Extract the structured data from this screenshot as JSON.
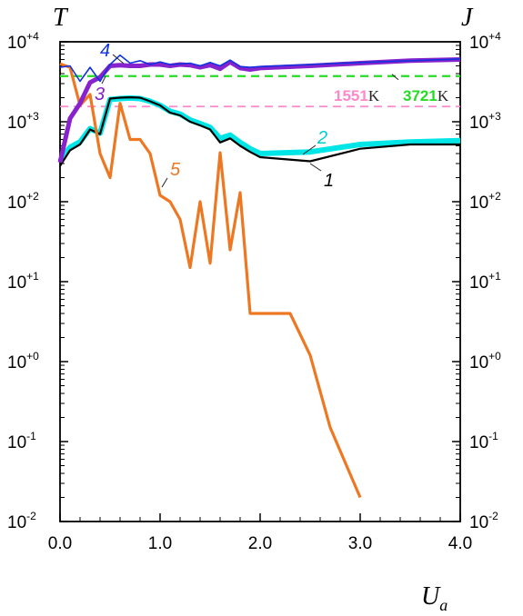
{
  "chart_data": {
    "type": "line",
    "ylabel_left": "T",
    "ylabel_right": "J",
    "xlabel": "U",
    "xlabel_sub": "a",
    "xlim": [
      0,
      4
    ],
    "ylim": [
      0.01,
      10000
    ],
    "yscale": "log",
    "x_ticks": [
      "0.0",
      "1.0",
      "2.0",
      "3.0",
      "4.0"
    ],
    "y_ticks": [
      {
        "base": "10",
        "exp": "-2",
        "value": 0.01
      },
      {
        "base": "10",
        "exp": "-1",
        "value": 0.1
      },
      {
        "base": "10",
        "exp": "+0",
        "value": 1
      },
      {
        "base": "10",
        "exp": "+1",
        "value": 10
      },
      {
        "base": "10",
        "exp": "+2",
        "value": 100
      },
      {
        "base": "10",
        "exp": "+3",
        "value": 1000
      },
      {
        "base": "10",
        "exp": "+4",
        "value": 10000
      }
    ],
    "grid": false,
    "reference_lines": [
      {
        "value": 3721,
        "label": "3721",
        "unit": "K",
        "color": "#22dd22"
      },
      {
        "value": 1551,
        "label": "1551",
        "unit": "K",
        "color": "#ff88cc"
      }
    ],
    "series": [
      {
        "label": "1",
        "color": "#000000",
        "label_color": "#000000",
        "x": [
          0,
          0.1,
          0.2,
          0.3,
          0.4,
          0.5,
          0.6,
          0.7,
          0.8,
          0.9,
          1.0,
          1.1,
          1.2,
          1.3,
          1.4,
          1.5,
          1.6,
          1.7,
          1.8,
          1.9,
          2.0,
          2.5,
          3.0,
          3.5,
          4.0
        ],
        "y": [
          280,
          440,
          520,
          800,
          700,
          1950,
          2000,
          2020,
          2000,
          1800,
          1600,
          1300,
          1200,
          1000,
          900,
          800,
          550,
          620,
          500,
          420,
          360,
          320,
          460,
          520,
          520
        ]
      },
      {
        "label": "2",
        "color": "#00e5e5",
        "label_color": "#00cccc",
        "x": [
          0,
          0.1,
          0.2,
          0.3,
          0.4,
          0.5,
          0.6,
          0.7,
          0.8,
          0.9,
          1.0,
          1.1,
          1.2,
          1.3,
          1.4,
          1.5,
          1.6,
          1.7,
          1.8,
          1.9,
          2.0,
          2.5,
          3.0,
          3.5,
          4.0
        ],
        "y": [
          320,
          480,
          560,
          820,
          720,
          1900,
          1950,
          1980,
          1950,
          1800,
          1600,
          1350,
          1250,
          1050,
          950,
          850,
          620,
          680,
          550,
          460,
          400,
          420,
          520,
          560,
          580
        ]
      },
      {
        "label": "3",
        "color": "#8822cc",
        "label_color": "#8822cc",
        "x": [
          0,
          0.1,
          0.2,
          0.3,
          0.4,
          0.5,
          0.6,
          0.7,
          0.8,
          0.9,
          1.0,
          1.1,
          1.2,
          1.3,
          1.4,
          1.5,
          1.6,
          1.7,
          1.8,
          1.9,
          2.0,
          2.5,
          3.0,
          3.5,
          4.0
        ],
        "y": [
          310,
          1100,
          1700,
          3100,
          3600,
          5000,
          5100,
          5000,
          5000,
          5200,
          5200,
          5000,
          5200,
          5100,
          4800,
          5100,
          4600,
          5600,
          4700,
          4500,
          4700,
          5000,
          5400,
          5800,
          6000
        ]
      },
      {
        "label": "4",
        "color": "#1133dd",
        "label_color": "#1133dd",
        "x": [
          0,
          0.1,
          0.2,
          0.3,
          0.4,
          0.5,
          0.6,
          0.7,
          0.8,
          0.9,
          1.0,
          1.1,
          1.2,
          1.3,
          1.4,
          1.5,
          1.6,
          1.7,
          1.8,
          1.9,
          2.0,
          2.5,
          3.0,
          3.5,
          4.0
        ],
        "y": [
          4800,
          5000,
          3200,
          4800,
          3200,
          5200,
          6800,
          5400,
          5800,
          5200,
          5600,
          5200,
          5300,
          5400,
          5000,
          5500,
          5000,
          5900,
          4900,
          4800,
          4900,
          5200,
          5500,
          5800,
          6100
        ]
      },
      {
        "label": "5",
        "color": "#ee7722",
        "label_color": "#ee7722",
        "x": [
          0,
          0.1,
          0.2,
          0.3,
          0.4,
          0.5,
          0.6,
          0.7,
          0.8,
          0.9,
          1.0,
          1.1,
          1.2,
          1.3,
          1.4,
          1.5,
          1.6,
          1.7,
          1.8,
          1.9,
          2.0,
          2.3,
          2.5,
          2.7,
          3.0
        ],
        "y": [
          5300,
          4800,
          1600,
          2200,
          400,
          200,
          1700,
          600,
          600,
          400,
          120,
          100,
          60,
          15,
          100,
          17,
          410,
          25,
          130,
          4,
          4,
          4,
          1.2,
          0.15,
          0.02
        ]
      }
    ]
  }
}
